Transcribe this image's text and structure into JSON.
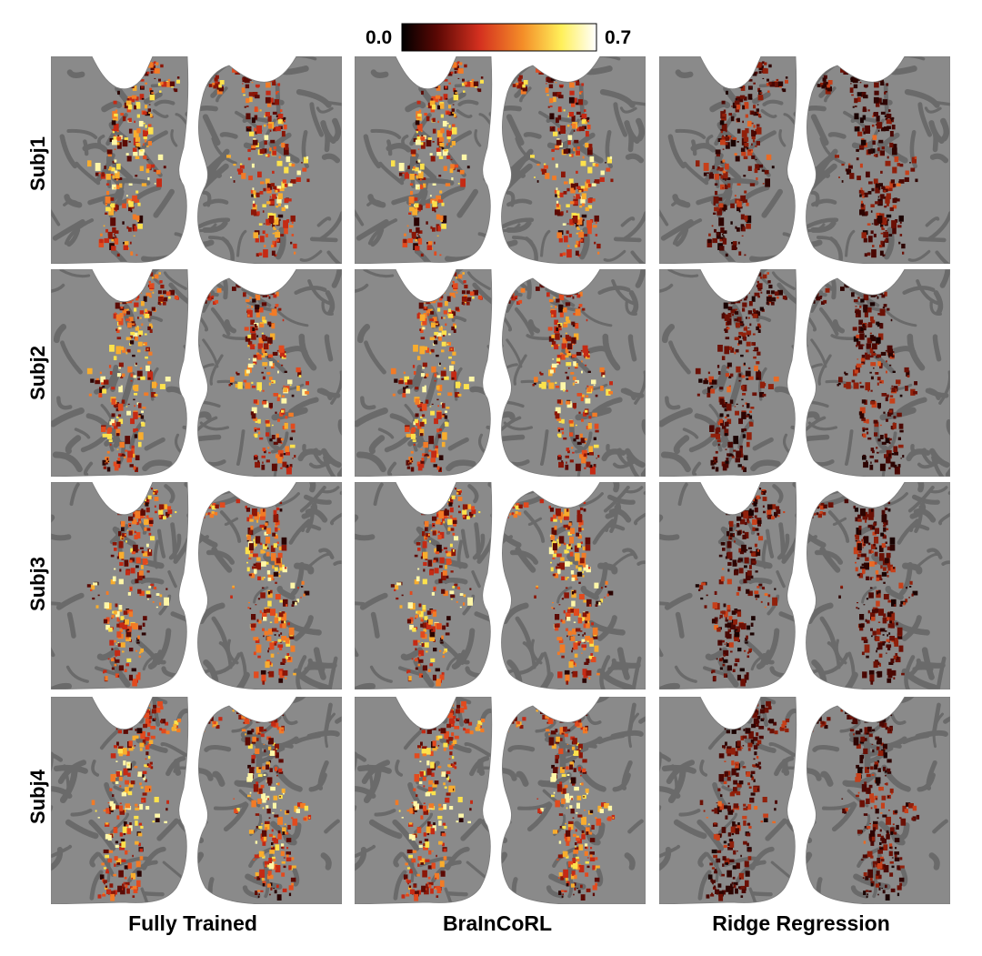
{
  "colorbar": {
    "min_label": "0.0",
    "max_label": "0.7",
    "colormap": "hot",
    "stops": [
      "#000000",
      "#7a0a05",
      "#e8402a",
      "#f7a82a",
      "#fff36a",
      "#ffffff"
    ]
  },
  "rows": [
    {
      "label": "Subj1"
    },
    {
      "label": "Subj2"
    },
    {
      "label": "Subj3"
    },
    {
      "label": "Subj4"
    }
  ],
  "columns": [
    {
      "label": "Fully Trained",
      "intensity": "high"
    },
    {
      "label": "BraInCoRL",
      "intensity": "high"
    },
    {
      "label": "Ridge Regression",
      "intensity": "low"
    }
  ],
  "colors": {
    "cortex_background": "#8a8a8a",
    "sulci": "#6a6a6a"
  }
}
